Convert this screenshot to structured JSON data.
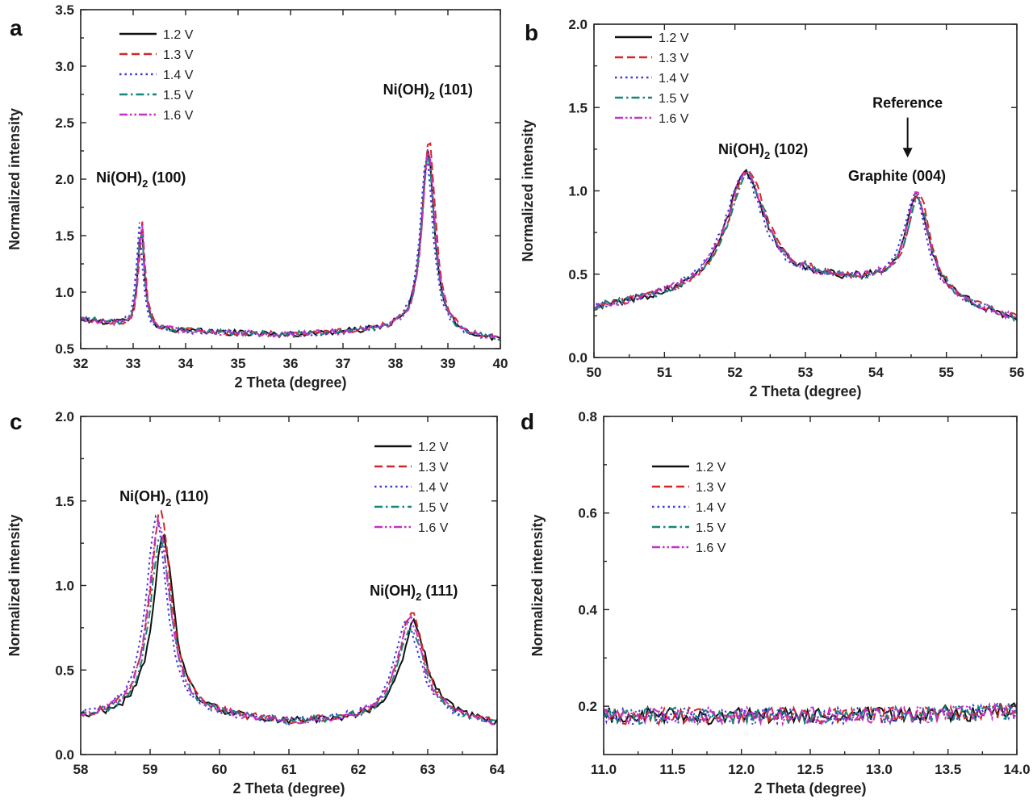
{
  "chart_data": [
    {
      "panel": "a",
      "type": "line",
      "xlabel": "2 Theta (degree)",
      "ylabel": "Normalized intensity",
      "xlim": [
        32,
        40
      ],
      "ylim": [
        0.5,
        3.5
      ],
      "xticks": [
        "32",
        "33",
        "34",
        "35",
        "36",
        "37",
        "38",
        "39",
        "40"
      ],
      "yticks": [
        "0.5",
        "1.0",
        "1.5",
        "2.0",
        "2.5",
        "3.0",
        "3.5"
      ],
      "legend_position": "top-left",
      "peaks": [
        {
          "center": 33.15,
          "width": 0.07,
          "height": 0.93
        },
        {
          "center": 38.62,
          "width": 0.15,
          "height": 1.62
        }
      ],
      "baseline": {
        "x": [
          32,
          33.5,
          36,
          38,
          40
        ],
        "y": [
          0.76,
          0.66,
          0.62,
          0.66,
          0.57
        ]
      },
      "series": [
        {
          "name": "1.2 V",
          "color": "#111111",
          "dash": "solid",
          "peak_scale": [
            1.0,
            1.0
          ],
          "shift": 0.0
        },
        {
          "name": "1.3 V",
          "color": "#d62728",
          "dash": "dashed",
          "peak_scale": [
            1.03,
            1.08
          ],
          "shift": 0.02
        },
        {
          "name": "1.4 V",
          "color": "#3b3bd6",
          "dash": "dotted",
          "peak_scale": [
            0.98,
            0.97
          ],
          "shift": -0.03
        },
        {
          "name": "1.5 V",
          "color": "#16857a",
          "dash": "dashdot",
          "peak_scale": [
            0.97,
            0.98
          ],
          "shift": 0.0
        },
        {
          "name": "1.6 V",
          "color": "#c531c5",
          "dash": "dashdotdot",
          "peak_scale": [
            1.01,
            1.0
          ],
          "shift": 0.01
        }
      ],
      "annotations": [
        {
          "text": "Ni(OH)",
          "sub": "2",
          "tail": " (100)",
          "x": 33.15,
          "y": 1.97
        },
        {
          "text": "Ni(OH)",
          "sub": "2",
          "tail": " (101)",
          "x": 38.62,
          "y": 2.75
        }
      ]
    },
    {
      "panel": "b",
      "type": "line",
      "xlabel": "2 Theta (degree)",
      "ylabel": "Normalized intensity",
      "xlim": [
        50,
        56
      ],
      "ylim": [
        0.0,
        2.0
      ],
      "xticks": [
        "50",
        "51",
        "52",
        "53",
        "54",
        "55",
        "56"
      ],
      "yticks": [
        "0.0",
        "0.5",
        "1.0",
        "1.5",
        "2.0"
      ],
      "legend_position": "top-left",
      "peaks": [
        {
          "center": 52.15,
          "width": 0.33,
          "height": 0.68
        },
        {
          "center": 54.58,
          "width": 0.2,
          "height": 0.6
        }
      ],
      "baseline": {
        "x": [
          50,
          51,
          52,
          53,
          54,
          55,
          56
        ],
        "y": [
          0.29,
          0.35,
          0.42,
          0.45,
          0.43,
          0.33,
          0.22
        ]
      },
      "series": [
        {
          "name": "1.2 V",
          "color": "#111111",
          "dash": "solid",
          "peak_scale": [
            1.0,
            1.0
          ],
          "shift": 0.0
        },
        {
          "name": "1.3 V",
          "color": "#d62728",
          "dash": "dashed",
          "peak_scale": [
            1.03,
            1.0
          ],
          "shift": 0.03
        },
        {
          "name": "1.4 V",
          "color": "#3b3bd6",
          "dash": "dotted",
          "peak_scale": [
            0.99,
            0.98
          ],
          "shift": -0.03
        },
        {
          "name": "1.5 V",
          "color": "#16857a",
          "dash": "dashdot",
          "peak_scale": [
            0.98,
            0.97
          ],
          "shift": 0.02
        },
        {
          "name": "1.6 V",
          "color": "#c531c5",
          "dash": "dashdotdot",
          "peak_scale": [
            1.01,
            1.0
          ],
          "shift": 0.0
        }
      ],
      "annotations": [
        {
          "text": "Ni(OH)",
          "sub": "2",
          "tail": " (102)",
          "x": 52.4,
          "y": 1.22
        },
        {
          "text": "Graphite (004)",
          "sub": "",
          "tail": "",
          "x": 54.3,
          "y": 1.06
        },
        {
          "text": "Reference",
          "sub": "",
          "tail": "",
          "x": 54.45,
          "y": 1.5
        }
      ],
      "arrow": {
        "x": 54.45,
        "y_from": 1.44,
        "y_to": 1.2
      }
    },
    {
      "panel": "c",
      "type": "line",
      "xlabel": "2 Theta (degree)",
      "ylabel": "Normalized intensity",
      "xlim": [
        58,
        64
      ],
      "ylim": [
        0.0,
        2.0
      ],
      "xticks": [
        "58",
        "59",
        "60",
        "61",
        "62",
        "63",
        "64"
      ],
      "yticks": [
        "0.0",
        "0.5",
        "1.0",
        "1.5",
        "2.0"
      ],
      "legend_position": "top-right",
      "peaks": [
        {
          "center": 59.15,
          "width": 0.19,
          "height": 1.07
        },
        {
          "center": 62.76,
          "width": 0.22,
          "height": 0.56
        }
      ],
      "baseline": {
        "x": [
          58,
          59,
          60,
          61,
          62,
          63,
          64
        ],
        "y": [
          0.21,
          0.21,
          0.21,
          0.18,
          0.2,
          0.22,
          0.17
        ]
      },
      "series": [
        {
          "name": "1.2 V",
          "color": "#111111",
          "dash": "solid",
          "peak_scale": [
            1.0,
            1.0
          ],
          "shift": 0.04
        },
        {
          "name": "1.3 V",
          "color": "#d62728",
          "dash": "dashed",
          "peak_scale": [
            1.14,
            1.1
          ],
          "shift": 0.0
        },
        {
          "name": "1.4 V",
          "color": "#3b3bd6",
          "dash": "dotted",
          "peak_scale": [
            1.1,
            1.03
          ],
          "shift": -0.06
        },
        {
          "name": "1.5 V",
          "color": "#16857a",
          "dash": "dashdot",
          "peak_scale": [
            1.0,
            0.96
          ],
          "shift": 0.0
        },
        {
          "name": "1.6 V",
          "color": "#c531c5",
          "dash": "dashdotdot",
          "peak_scale": [
            1.08,
            1.05
          ],
          "shift": -0.02
        }
      ],
      "annotations": [
        {
          "text": "Ni(OH)",
          "sub": "2",
          "tail": " (110)",
          "x": 59.2,
          "y": 1.5
        },
        {
          "text": "Ni(OH)",
          "sub": "2",
          "tail": " (111)",
          "x": 62.8,
          "y": 0.94
        }
      ]
    },
    {
      "panel": "d",
      "type": "line",
      "xlabel": "2 Theta (degree)",
      "ylabel": "Normalized intensity",
      "xlim": [
        11.0,
        14.0
      ],
      "ylim": [
        0.1,
        0.8
      ],
      "xticks": [
        "11.0",
        "11.5",
        "12.0",
        "12.5",
        "13.0",
        "13.5",
        "14.0"
      ],
      "yticks": [
        "0.2",
        "0.4",
        "0.6",
        "0.8"
      ],
      "ytick_values": [
        0.2,
        0.4,
        0.6,
        0.8
      ],
      "legend_position": "top-left",
      "peaks": [],
      "baseline": {
        "x": [
          11.0,
          12.0,
          13.0,
          14.0
        ],
        "y": [
          0.18,
          0.18,
          0.18,
          0.19
        ]
      },
      "series": [
        {
          "name": "1.2 V",
          "color": "#111111",
          "dash": "solid",
          "peak_scale": [
            1.0,
            1.0
          ],
          "shift": 0.02
        },
        {
          "name": "1.3 V",
          "color": "#d62728",
          "dash": "dashed",
          "peak_scale": [
            1.0,
            1.0
          ],
          "shift": 0.0
        },
        {
          "name": "1.4 V",
          "color": "#3b3bd6",
          "dash": "dotted",
          "peak_scale": [
            1.0,
            1.0
          ],
          "shift": -0.02
        },
        {
          "name": "1.5 V",
          "color": "#16857a",
          "dash": "dashdot",
          "peak_scale": [
            1.0,
            1.0
          ],
          "shift": 0.0
        },
        {
          "name": "1.6 V",
          "color": "#c531c5",
          "dash": "dashdotdot",
          "peak_scale": [
            1.0,
            1.0
          ],
          "shift": -0.01
        }
      ],
      "annotations": []
    }
  ]
}
